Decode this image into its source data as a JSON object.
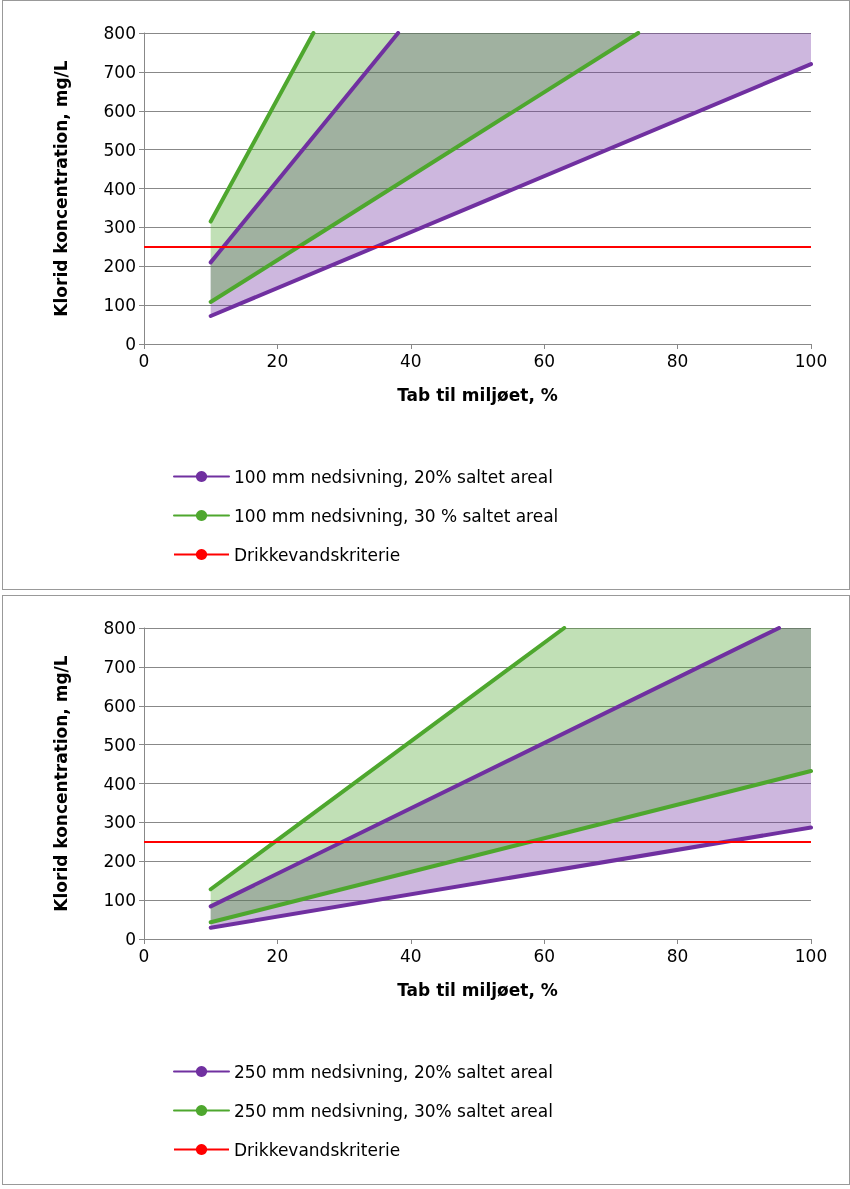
{
  "chart_data": [
    {
      "type": "line",
      "xlabel": "Tab til miljøet, %",
      "ylabel": "Klorid koncentration, mg/L",
      "xlim": [
        0,
        100
      ],
      "xticks": [
        0,
        20,
        40,
        60,
        80,
        100
      ],
      "ylim": [
        0,
        800
      ],
      "yticks": [
        0,
        100,
        200,
        300,
        400,
        500,
        600,
        700,
        800
      ],
      "grid": "y",
      "legend": "bottom",
      "marker": "none",
      "line_style": "solid",
      "ref_lines": [
        {
          "axis": "y",
          "value": 250,
          "label": "Drikkevandskriterie",
          "color": "#ff0000"
        }
      ],
      "series": [
        {
          "name": "100 mm nedsivning, 20% saltet areal",
          "color": "#7030a0",
          "x": [
            10,
            38.1,
            100
          ],
          "values": [
            72,
            274,
            720
          ],
          "lower": [
            72,
            274,
            720
          ],
          "upper": [
            210,
            800,
            800
          ]
        },
        {
          "color": "#7030a0",
          "x": [
            10,
            38.1
          ],
          "values": [
            210,
            800
          ]
        },
        {
          "name": "100 mm nedsivning, 30 % saltet areal",
          "color": "#4ea72e",
          "x": [
            10,
            25.4,
            74.1
          ],
          "values": [
            108,
            274,
            800
          ],
          "lower": [
            108,
            274,
            800
          ],
          "upper": [
            315,
            800,
            800
          ]
        },
        {
          "color": "#4ea72e",
          "x": [
            10,
            25.4
          ],
          "values": [
            315,
            800
          ]
        }
      ]
    },
    {
      "type": "line",
      "xlabel": "Tab til miljøet, %",
      "ylabel": "Klorid koncentration, mg/L",
      "xlim": [
        0,
        100
      ],
      "xticks": [
        0,
        20,
        40,
        60,
        80,
        100
      ],
      "ylim": [
        0,
        800
      ],
      "yticks": [
        0,
        100,
        200,
        300,
        400,
        500,
        600,
        700,
        800
      ],
      "grid": "y",
      "legend": "bottom",
      "marker": "none",
      "line_style": "solid",
      "ref_lines": [
        {
          "axis": "y",
          "value": 250,
          "label": "Drikkevandskriterie",
          "color": "#ff0000"
        }
      ],
      "series": [
        {
          "name": "250 mm nedsivning, 20% saltet areal",
          "color": "#7030a0",
          "x": [
            10,
            95.2,
            100
          ],
          "values": [
            29,
            273,
            287
          ],
          "lower": [
            29,
            273,
            287
          ],
          "upper": [
            84,
            800,
            800
          ]
        },
        {
          "color": "#7030a0",
          "x": [
            10,
            95.2
          ],
          "values": [
            84,
            800
          ]
        },
        {
          "name": "250 mm nedsivning, 30% saltet areal",
          "color": "#4ea72e",
          "x": [
            10,
            63,
            100
          ],
          "values": [
            43,
            272,
            432
          ],
          "lower": [
            43,
            272,
            432
          ],
          "upper": [
            128,
            800,
            800
          ]
        },
        {
          "color": "#4ea72e",
          "x": [
            10,
            63
          ],
          "values": [
            128,
            800
          ]
        }
      ]
    }
  ]
}
